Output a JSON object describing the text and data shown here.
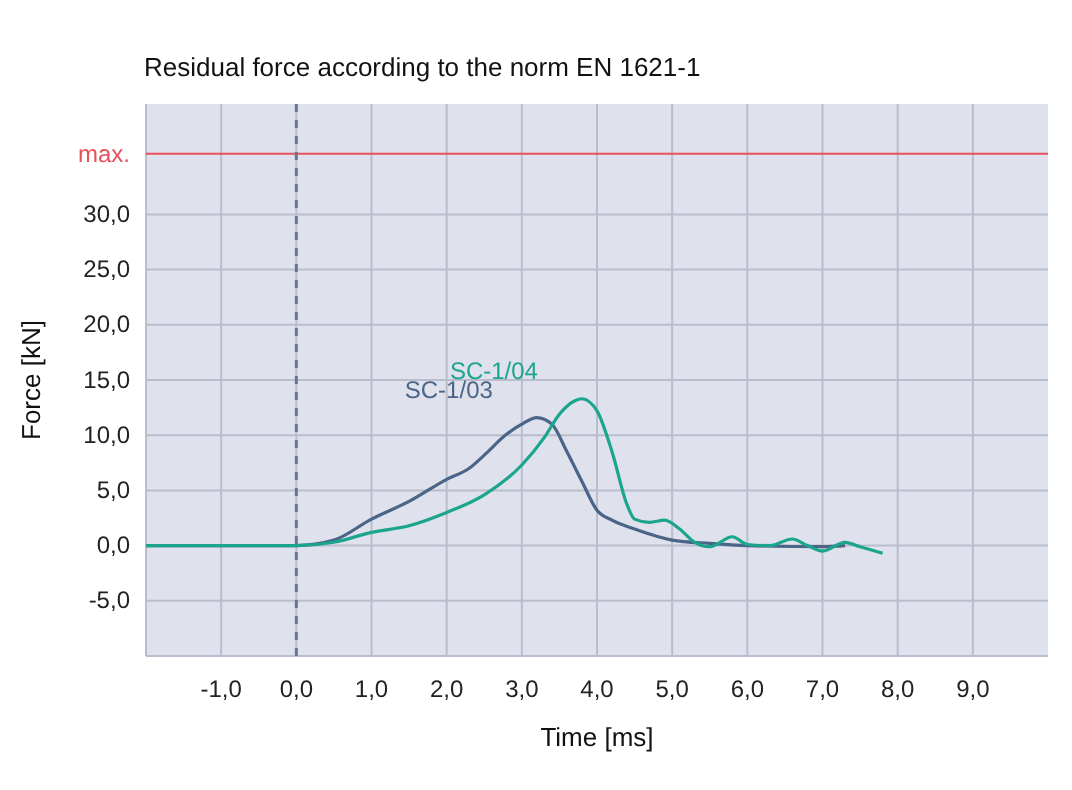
{
  "chart_data": {
    "type": "line",
    "title": "Residual force according to the norm EN 1621-1",
    "xlabel": "Time [ms]",
    "ylabel": "Force [kN]",
    "xlim": [
      -2,
      10
    ],
    "ylim": [
      -10,
      40
    ],
    "xticks": [
      {
        "value": -1,
        "label": "-1,0"
      },
      {
        "value": 0,
        "label": "0,0"
      },
      {
        "value": 1,
        "label": "1,0"
      },
      {
        "value": 2,
        "label": "2,0"
      },
      {
        "value": 3,
        "label": "3,0"
      },
      {
        "value": 4,
        "label": "4,0"
      },
      {
        "value": 5,
        "label": "5,0"
      },
      {
        "value": 6,
        "label": "6,0"
      },
      {
        "value": 7,
        "label": "7,0"
      },
      {
        "value": 8,
        "label": "8,0"
      },
      {
        "value": 9,
        "label": "9,0"
      }
    ],
    "yticks": [
      {
        "value": -5,
        "label": "-5,0"
      },
      {
        "value": 0,
        "label": "0,0"
      },
      {
        "value": 5,
        "label": "5,0"
      },
      {
        "value": 10,
        "label": "10,0"
      },
      {
        "value": 15,
        "label": "15,0"
      },
      {
        "value": 20,
        "label": "20,0"
      },
      {
        "value": 25,
        "label": "25,0"
      },
      {
        "value": 30,
        "label": "30,0"
      }
    ],
    "grid": true,
    "line_style": "solid",
    "ref_lines": [
      {
        "axis": "y",
        "value": 35.5,
        "label": "max.",
        "color": "#e8505b",
        "line_style": "solid"
      },
      {
        "axis": "x",
        "value": 0,
        "color": "#6a7690",
        "line_style": "dashed"
      }
    ],
    "series": [
      {
        "name": "SC-1/03",
        "color": "#4a6587",
        "x": [
          -2,
          0,
          0.5,
          1,
          1.5,
          2,
          2.3,
          2.5,
          2.8,
          3,
          3.2,
          3.4,
          3.6,
          3.8,
          4,
          4.2,
          4.5,
          5,
          5.5,
          6,
          7,
          7.3
        ],
        "values": [
          0,
          0,
          0.5,
          2.4,
          4,
          6,
          7,
          8.2,
          10.1,
          11,
          11.6,
          11,
          8.5,
          5.8,
          3.2,
          2.3,
          1.5,
          0.5,
          0.2,
          0,
          -0.1,
          0
        ]
      },
      {
        "name": "SC-1/04",
        "color": "#1aa58c",
        "x": [
          -2,
          0,
          0.5,
          1,
          1.5,
          2,
          2.5,
          3,
          3.3,
          3.5,
          3.7,
          3.8,
          4,
          4.2,
          4.4,
          4.5,
          4.7,
          4.9,
          5.1,
          5.3,
          5.5,
          5.8,
          6,
          6.3,
          6.6,
          6.8,
          7,
          7.3,
          7.5,
          7.8
        ],
        "values": [
          0,
          0,
          0.3,
          1.2,
          1.8,
          3,
          4.6,
          7.3,
          9.8,
          11.9,
          13.1,
          13.3,
          12.2,
          8.5,
          3.7,
          2.4,
          2.1,
          2.3,
          1.5,
          0.3,
          -0.1,
          0.8,
          0.1,
          0,
          0.6,
          0,
          -0.5,
          0.3,
          -0.1,
          -0.7
        ]
      }
    ]
  }
}
